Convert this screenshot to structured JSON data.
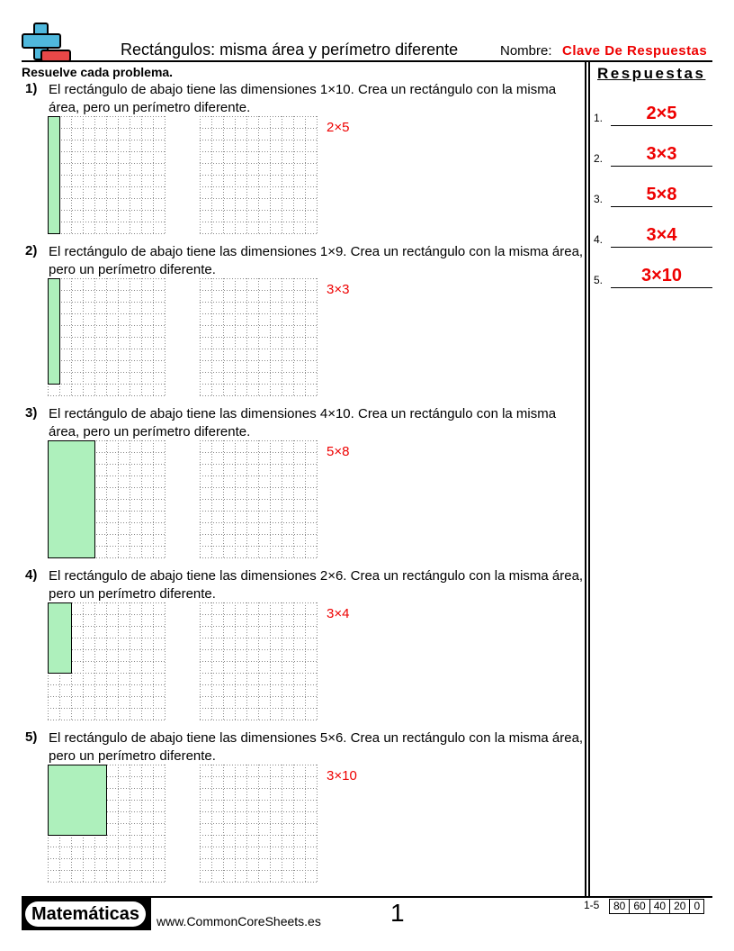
{
  "header": {
    "title": "Rectángulos: misma área y perímetro diferente",
    "name_label": "Nombre:",
    "name_value": "Clave De Respuestas"
  },
  "instructions": "Resuelve cada problema.",
  "problems": [
    {
      "number": "1)",
      "text": "El rectángulo de abajo tiene las dimensiones 1×10. Crea un rectángulo con la misma área, pero un perímetro diferente.",
      "width": 1,
      "height": 10,
      "answer": "2×5"
    },
    {
      "number": "2)",
      "text": "El rectángulo de abajo tiene las dimensiones 1×9. Crea un rectángulo con la misma área, pero un perímetro diferente.",
      "width": 1,
      "height": 9,
      "answer": "3×3"
    },
    {
      "number": "3)",
      "text": "El rectángulo de abajo tiene las dimensiones 4×10. Crea un rectángulo con la misma área, pero un perímetro diferente.",
      "width": 4,
      "height": 10,
      "answer": "5×8"
    },
    {
      "number": "4)",
      "text": "El rectángulo de abajo tiene las dimensiones 2×6. Crea un rectángulo con la misma área, pero un perímetro diferente.",
      "width": 2,
      "height": 6,
      "answer": "3×4"
    },
    {
      "number": "5)",
      "text": "El rectángulo de abajo tiene las dimensiones 5×6. Crea un rectángulo con la misma área, pero un perímetro diferente.",
      "width": 5,
      "height": 6,
      "answer": "3×10"
    }
  ],
  "answers_panel": {
    "title": "Respuestas",
    "items": [
      {
        "num": "1.",
        "value": "2×5"
      },
      {
        "num": "2.",
        "value": "3×3"
      },
      {
        "num": "3.",
        "value": "5×8"
      },
      {
        "num": "4.",
        "value": "3×4"
      },
      {
        "num": "5.",
        "value": "3×10"
      }
    ]
  },
  "footer": {
    "brand": "Matemáticas",
    "site": "www.CommonCoreSheets.es",
    "page": "1",
    "score_label": "1-5",
    "scores": [
      "80",
      "60",
      "40",
      "20",
      "0"
    ]
  },
  "colors": {
    "answer": "#ee0000",
    "rect_fill": "#aef0bc",
    "logo_blue": "#4fb8dc",
    "logo_red": "#e84848"
  }
}
